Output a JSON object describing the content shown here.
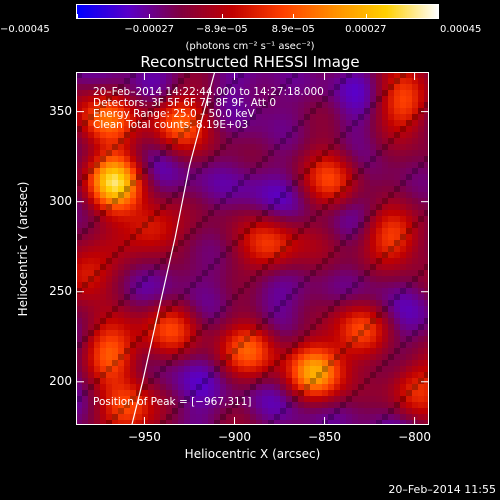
{
  "chart_data": {
    "type": "heatmap",
    "title": "Reconstructed RHESSI Image",
    "xlabel": "Heliocentric X (arcsec)",
    "ylabel": "Heliocentric Y (arcsec)",
    "xlim": [
      -988,
      -792
    ],
    "ylim": [
      176,
      372
    ],
    "x_ticks": [
      -950,
      -900,
      -850,
      -800
    ],
    "x_tick_labels": [
      "−950",
      "−900",
      "−850",
      "−800"
    ],
    "y_ticks": [
      200,
      250,
      300,
      350
    ],
    "y_tick_labels": [
      "200",
      "250",
      "300",
      "350"
    ],
    "colorbar": {
      "min": -0.00045,
      "max": 0.00045,
      "ticks": [
        -0.00045,
        -0.00027,
        -8.9e-05,
        8.9e-05,
        0.00027,
        0.00045
      ],
      "tick_labels": [
        "−0.00045",
        "−0.00027",
        "−8.9e−05",
        "8.9e−05",
        "0.00027",
        "0.00045"
      ],
      "units_label": "(photons cm⁻² s⁻¹ asec⁻²)",
      "colors": [
        "#0000ff",
        "#5a00c8",
        "#800040",
        "#c00000",
        "#ff4000",
        "#ff9000",
        "#ffd000",
        "#ffffff"
      ]
    },
    "info_lines": [
      "20–Feb–2014 14:22:44.000 to 14:27:18.000",
      "Detectors: 3F 5F 6F 7F 8F 9F, Att 0",
      "Energy Range: 25.0 – 50.0 keV",
      "Clean    Total counts: 8.19E+03"
    ],
    "peak_label": "Position of Peak = [−967,311]",
    "peak_position": [
      -967,
      311
    ],
    "limb_curve": [
      [
        -957,
        176
      ],
      [
        -951,
        200
      ],
      [
        -942,
        240
      ],
      [
        -933,
        280
      ],
      [
        -925,
        320
      ],
      [
        -917,
        350
      ],
      [
        -911,
        372
      ]
    ],
    "sources": [
      {
        "x": -967,
        "y": 311,
        "peak": 1.0
      },
      {
        "x": -984,
        "y": 260,
        "peak": 0.55
      },
      {
        "x": -972,
        "y": 345,
        "peak": 0.55
      },
      {
        "x": -932,
        "y": 345,
        "peak": 0.55
      },
      {
        "x": -945,
        "y": 285,
        "peak": 0.45
      },
      {
        "x": -880,
        "y": 275,
        "peak": 0.5
      },
      {
        "x": -845,
        "y": 312,
        "peak": 0.45
      },
      {
        "x": -805,
        "y": 355,
        "peak": 0.55
      },
      {
        "x": -812,
        "y": 282,
        "peak": 0.55
      },
      {
        "x": -830,
        "y": 230,
        "peak": 0.5
      },
      {
        "x": -855,
        "y": 205,
        "peak": 0.8
      },
      {
        "x": -890,
        "y": 218,
        "peak": 0.5
      },
      {
        "x": -935,
        "y": 230,
        "peak": 0.45
      },
      {
        "x": -970,
        "y": 215,
        "peak": 0.6
      },
      {
        "x": -960,
        "y": 185,
        "peak": 0.55
      },
      {
        "x": -800,
        "y": 195,
        "peak": 0.5
      }
    ]
  },
  "footer": {
    "timestamp": "20–Feb–2014 11:55"
  }
}
